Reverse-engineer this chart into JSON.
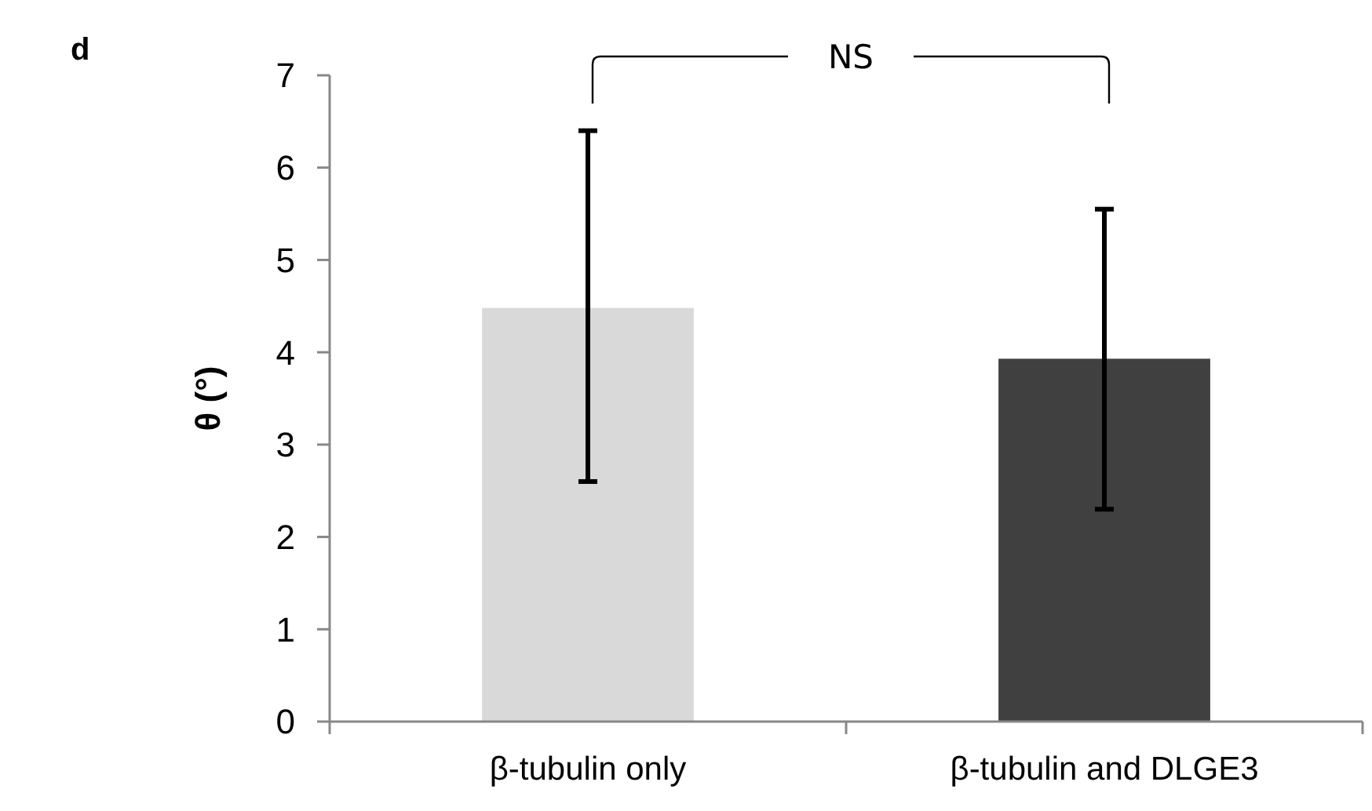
{
  "chart_data": {
    "type": "bar",
    "ylabel": "θ (°)",
    "categories": [
      "β-tubulin only",
      "β-tubulin and DLGE3"
    ],
    "values": [
      4.48,
      3.93
    ],
    "colors": [
      "#d9d9d9",
      "#404040"
    ],
    "errors": [
      [
        2.6,
        6.4
      ],
      [
        2.3,
        5.55
      ]
    ],
    "ylim": [
      0,
      7
    ],
    "yticks": [
      0,
      1,
      2,
      3,
      4,
      5,
      6,
      7
    ],
    "grid": false,
    "annotations": [
      "d",
      "NS"
    ]
  }
}
